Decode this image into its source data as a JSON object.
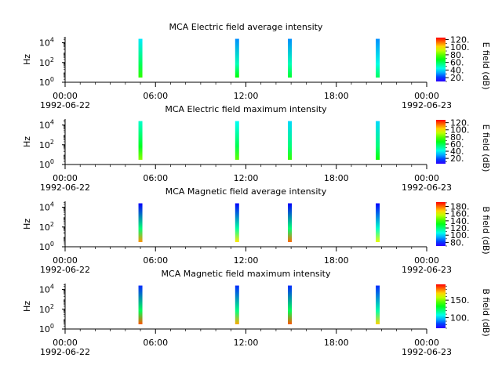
{
  "x_axis": {
    "ticks": [
      "00:00",
      "06:00",
      "12:00",
      "18:00",
      "00:00"
    ],
    "date_start": "1992-06-22",
    "date_end": "1992-06-23",
    "range": [
      "1992-06-22T00:00",
      "1992-06-23T00:00"
    ]
  },
  "chart_data": [
    {
      "type": "heatmap",
      "title": "MCA  Electric field average intensity",
      "ylabel": "Hz",
      "yscale": "log",
      "yticks": [
        "10",
        "10",
        "10"
      ],
      "ytick_exp": [
        "0",
        "2",
        "4"
      ],
      "colorbar": {
        "label": "E field (dB)",
        "range": [
          10,
          125
        ],
        "ticks": [
          "20.",
          "40.",
          "60.",
          "80.",
          "100.",
          "120."
        ],
        "tick_values": [
          20,
          40,
          60,
          80,
          100,
          120
        ]
      },
      "bursts": [
        {
          "time": "05:00",
          "f_min": 3,
          "f_max": 25000,
          "level": [
            40,
            60,
            75
          ]
        },
        {
          "time": "11:25",
          "f_min": 3,
          "f_max": 25000,
          "level": [
            30,
            50,
            70
          ]
        },
        {
          "time": "14:55",
          "f_min": 3,
          "f_max": 25000,
          "level": [
            30,
            50,
            65
          ]
        },
        {
          "time": "20:45",
          "f_min": 3,
          "f_max": 25000,
          "level": [
            30,
            45,
            60
          ]
        }
      ]
    },
    {
      "type": "heatmap",
      "title": "MCA  Electric field maximum intensity",
      "ylabel": "Hz",
      "yscale": "log",
      "yticks": [
        "10",
        "10",
        "10"
      ],
      "ytick_exp": [
        "0",
        "2",
        "4"
      ],
      "colorbar": {
        "label": "E field (dB)",
        "range": [
          5,
          128
        ],
        "ticks": [
          "20.",
          "40.",
          "60.",
          "80.",
          "100.",
          "120."
        ],
        "tick_values": [
          20,
          40,
          60,
          80,
          100,
          120
        ]
      },
      "bursts": [
        {
          "time": "05:00",
          "f_min": 3,
          "f_max": 25000,
          "level": [
            45,
            65,
            85
          ]
        },
        {
          "time": "11:25",
          "f_min": 3,
          "f_max": 25000,
          "level": [
            40,
            60,
            80
          ]
        },
        {
          "time": "14:55",
          "f_min": 3,
          "f_max": 25000,
          "level": [
            35,
            55,
            75
          ]
        },
        {
          "time": "20:45",
          "f_min": 3,
          "f_max": 25000,
          "level": [
            35,
            55,
            70
          ]
        }
      ]
    },
    {
      "type": "heatmap",
      "title": "MCA  Magnetic field average intensity",
      "ylabel": "Hz",
      "yscale": "log",
      "yticks": [
        "10",
        "10",
        "10"
      ],
      "ytick_exp": [
        "0",
        "2",
        "4"
      ],
      "colorbar": {
        "label": "B field (dB)",
        "range": [
          70,
          192
        ],
        "ticks": [
          "80.",
          "100.",
          "120.",
          "140.",
          "160.",
          "180."
        ],
        "tick_values": [
          80,
          100,
          120,
          140,
          160,
          180
        ]
      },
      "bursts": [
        {
          "time": "05:00",
          "f_min": 3,
          "f_max": 25000,
          "level": [
            75,
            120,
            175
          ]
        },
        {
          "time": "11:25",
          "f_min": 3,
          "f_max": 25000,
          "level": [
            75,
            115,
            165
          ]
        },
        {
          "time": "14:55",
          "f_min": 3,
          "f_max": 25000,
          "level": [
            75,
            120,
            180
          ]
        },
        {
          "time": "20:45",
          "f_min": 3,
          "f_max": 25000,
          "level": [
            75,
            110,
            160
          ]
        }
      ]
    },
    {
      "type": "heatmap",
      "title": "MCA  Magnetic field maximum intensity",
      "ylabel": "Hz",
      "yscale": "log",
      "yticks": [
        "10",
        "10",
        "10"
      ],
      "ytick_exp": [
        "0",
        "2",
        "4"
      ],
      "colorbar": {
        "label": "B field (dB)",
        "range": [
          70,
          195
        ],
        "ticks": [
          "100.",
          "150."
        ],
        "tick_values": [
          100,
          150
        ]
      },
      "bursts": [
        {
          "time": "05:00",
          "f_min": 3,
          "f_max": 25000,
          "level": [
            80,
            125,
            185
          ]
        },
        {
          "time": "11:25",
          "f_min": 3,
          "f_max": 25000,
          "level": [
            80,
            120,
            175
          ]
        },
        {
          "time": "14:55",
          "f_min": 3,
          "f_max": 25000,
          "level": [
            80,
            125,
            185
          ]
        },
        {
          "time": "20:45",
          "f_min": 3,
          "f_max": 25000,
          "level": [
            80,
            115,
            170
          ]
        }
      ]
    }
  ]
}
